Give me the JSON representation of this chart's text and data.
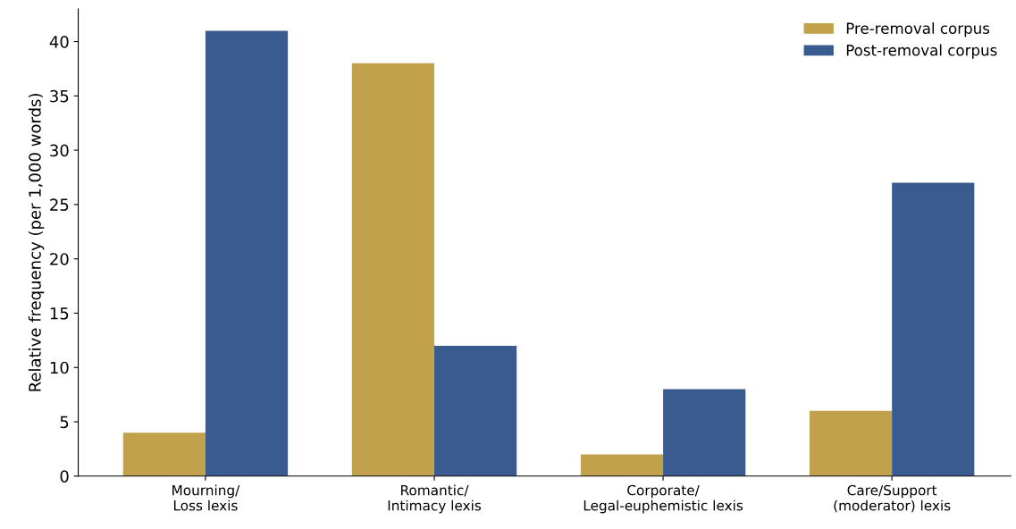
{
  "chart_data": {
    "type": "bar",
    "categories": [
      "Mourning/\nLoss lexis",
      "Romantic/\nIntimacy lexis",
      "Corporate/\nLegal-euphemistic lexis",
      "Care/Support\n(moderator) lexis"
    ],
    "series": [
      {
        "name": "Pre-removal corpus",
        "color": "#c1a14c",
        "values": [
          4,
          38,
          2,
          6
        ]
      },
      {
        "name": "Post-removal corpus",
        "color": "#3a5b8f",
        "values": [
          41,
          12,
          8,
          27
        ]
      }
    ],
    "ylabel": "Relative frequency (per 1,000 words)",
    "ylim": [
      0,
      43
    ],
    "yticks": [
      0,
      5,
      10,
      15,
      20,
      25,
      30,
      35,
      40
    ],
    "grid": false,
    "legend": "top right"
  }
}
